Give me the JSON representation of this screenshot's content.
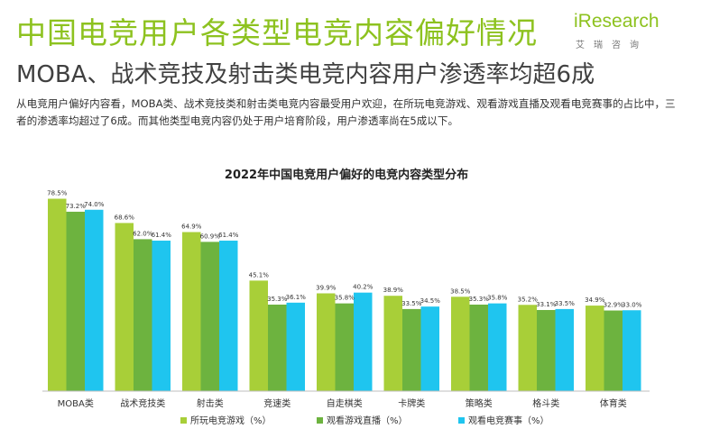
{
  "page": {
    "title": "中国电竞用户各类型电竞内容偏好情况",
    "subtitle": "MOBA、战术竞技及射击类电竞内容用户渗透率均超6成",
    "description": "从电竞用户偏好内容看，MOBA类、战术竞技类和射击类电竞内容最受用户欢迎，在所玩电竞游戏、观看游戏直播及观看电竞赛事的占比中，三者的渗透率均超过了6成。而其他类型电竞内容仍处于用户培育阶段，用户渗透率尚在5成以下。",
    "logo_main": "iResearch",
    "logo_sub": "艾瑞咨询"
  },
  "colors": {
    "title": "#8dc21f",
    "series": [
      "#a8cf38",
      "#6db33f",
      "#1fc5ef"
    ]
  },
  "chart_data": {
    "type": "bar",
    "title": "2022年中国电竞用户偏好的电竞内容类型分布",
    "categories": [
      "MOBA类",
      "战术竞技类",
      "射击类",
      "竞速类",
      "自走棋类",
      "卡牌类",
      "策略类",
      "格斗类",
      "体育类"
    ],
    "series": [
      {
        "name": "所玩电竞游戏（%）",
        "values": [
          78.5,
          68.6,
          64.9,
          45.1,
          39.9,
          38.9,
          38.5,
          35.2,
          34.9
        ]
      },
      {
        "name": "观看游戏直播（%）",
        "values": [
          73.2,
          62.0,
          60.9,
          35.3,
          35.8,
          33.5,
          35.3,
          33.1,
          32.9
        ]
      },
      {
        "name": "观看电竞赛事（%）",
        "values": [
          74.0,
          61.4,
          61.4,
          36.1,
          40.2,
          34.5,
          35.8,
          33.5,
          33.0
        ]
      }
    ],
    "value_format": "percent-1dp",
    "ylim": [
      0,
      80
    ],
    "grid": false,
    "legend": "bottom"
  }
}
